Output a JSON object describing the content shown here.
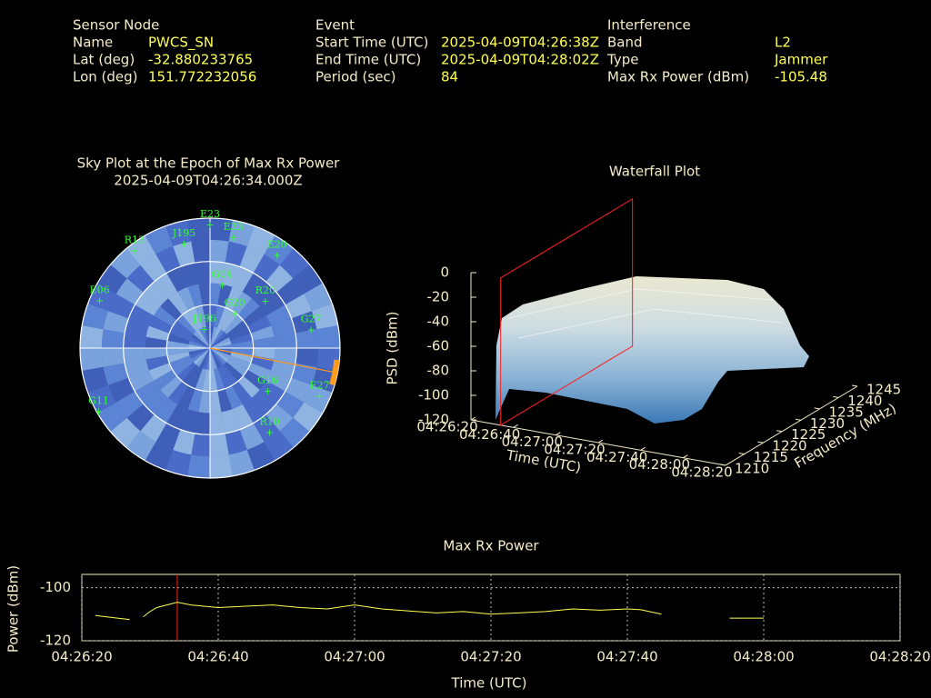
{
  "info": {
    "sensor": {
      "title": "Sensor Node",
      "rows": [
        [
          "Name",
          "PWCS_SN"
        ],
        [
          "Lat (deg)",
          "-32.880233765"
        ],
        [
          "Lon (deg)",
          "151.772232056"
        ]
      ]
    },
    "event": {
      "title": "Event",
      "rows": [
        [
          "Start Time (UTC)",
          "2025-04-09T04:26:38Z"
        ],
        [
          "End Time (UTC)",
          "2025-04-09T04:28:02Z"
        ],
        [
          "Period (sec)",
          "84"
        ]
      ]
    },
    "interference": {
      "title": "Interference",
      "rows": [
        [
          "Band",
          "L2"
        ],
        [
          "Type",
          "Jammer"
        ],
        [
          "Max Rx Power (dBm)",
          "-105.48"
        ]
      ]
    }
  },
  "chart_data": [
    {
      "type": "polar",
      "title": "Sky Plot at the Epoch of Max Rx Power",
      "subtitle": "2025-04-09T04:26:34.000Z",
      "rings": [
        0,
        30,
        60
      ],
      "interference_azimuth": 101,
      "point_color": "#33ff33",
      "satellites": [
        {
          "name": "E23",
          "azimuth": 0,
          "elevation": 5
        },
        {
          "name": "E33",
          "azimuth": 12,
          "elevation": 12
        },
        {
          "name": "R13",
          "azimuth": 322,
          "elevation": 5
        },
        {
          "name": "J195",
          "azimuth": 346,
          "elevation": 16
        },
        {
          "name": "E20",
          "azimuth": 36,
          "elevation": 11
        },
        {
          "name": "E06",
          "azimuth": 293,
          "elevation": 7
        },
        {
          "name": "G27",
          "azimuth": 80,
          "elevation": 19
        },
        {
          "name": "E27",
          "azimuth": 114,
          "elevation": 7
        },
        {
          "name": "G16",
          "azimuth": 127,
          "elevation": 40
        },
        {
          "name": "G11",
          "azimuth": 240,
          "elevation": 1
        },
        {
          "name": "J196",
          "azimuth": 343,
          "elevation": 77
        },
        {
          "name": "R10",
          "azimuth": 145,
          "elevation": 18
        },
        {
          "name": "G04",
          "azimuth": 11,
          "elevation": 46
        },
        {
          "name": "R20",
          "azimuth": 50,
          "elevation": 40
        },
        {
          "name": "G20",
          "azimuth": 36,
          "elevation": 61
        }
      ]
    },
    {
      "type": "surface3d",
      "title": "Waterfall Plot",
      "xlabel": "Time (UTC)",
      "ylabel": "Frequency (MHz)",
      "zlabel": "PSD (dBm)",
      "xlim": [
        "04:26:20",
        "04:28:20"
      ],
      "xticks": [
        "04:26:20",
        "04:26:40",
        "04:27:00",
        "04:27:20",
        "04:27:40",
        "04:28:00",
        "04:28:20"
      ],
      "ylim": [
        1210,
        1245
      ],
      "yticks": [
        1210,
        1215,
        1220,
        1225,
        1230,
        1235,
        1240,
        1245
      ],
      "zlim": [
        -120,
        0
      ],
      "zticks": [
        0,
        -20,
        -40,
        -60,
        -80,
        -100,
        -120
      ],
      "marker": "04:26:34",
      "marker_color": "#ff2020"
    },
    {
      "type": "line",
      "title": "Max Rx Power",
      "xlabel": "Time (UTC)",
      "ylabel": "Power (dBm)",
      "xlim": [
        "04:26:20",
        "04:28:20"
      ],
      "xticks": [
        "04:26:20",
        "04:26:40",
        "04:27:00",
        "04:27:20",
        "04:27:40",
        "04:28:00",
        "04:28:20"
      ],
      "ylim": [
        -120,
        -95
      ],
      "yticks": [
        -120,
        -100
      ],
      "grid": true,
      "marker": "04:26:34",
      "marker_color": "#ff2020",
      "series": [
        {
          "color": "#ffff55",
          "x": [
            "04:26:22",
            "04:26:27",
            "04:26:28",
            "04:26:29",
            "04:26:30",
            "04:26:31",
            "04:26:34",
            "04:26:36",
            "04:26:40",
            "04:26:44",
            "04:26:48",
            "04:26:52",
            "04:26:56",
            "04:27:00",
            "04:27:04",
            "04:27:08",
            "04:27:12",
            "04:27:16",
            "04:27:20",
            "04:27:24",
            "04:27:28",
            "04:27:32",
            "04:27:36",
            "04:27:40",
            "04:27:42",
            "04:27:45",
            "04:27:50",
            "04:27:55",
            "04:28:00"
          ],
          "values": [
            -110.5,
            -112,
            null,
            -111,
            -109,
            -107.5,
            -105.5,
            -106.5,
            -107.5,
            -107,
            -106.5,
            -107.5,
            -108,
            -106.5,
            -108,
            -108.8,
            -109.5,
            -109,
            -110,
            -109.5,
            -109,
            -108,
            -108.5,
            -108,
            -108.3,
            -110,
            null,
            -111.5,
            -111.5
          ]
        }
      ]
    }
  ]
}
